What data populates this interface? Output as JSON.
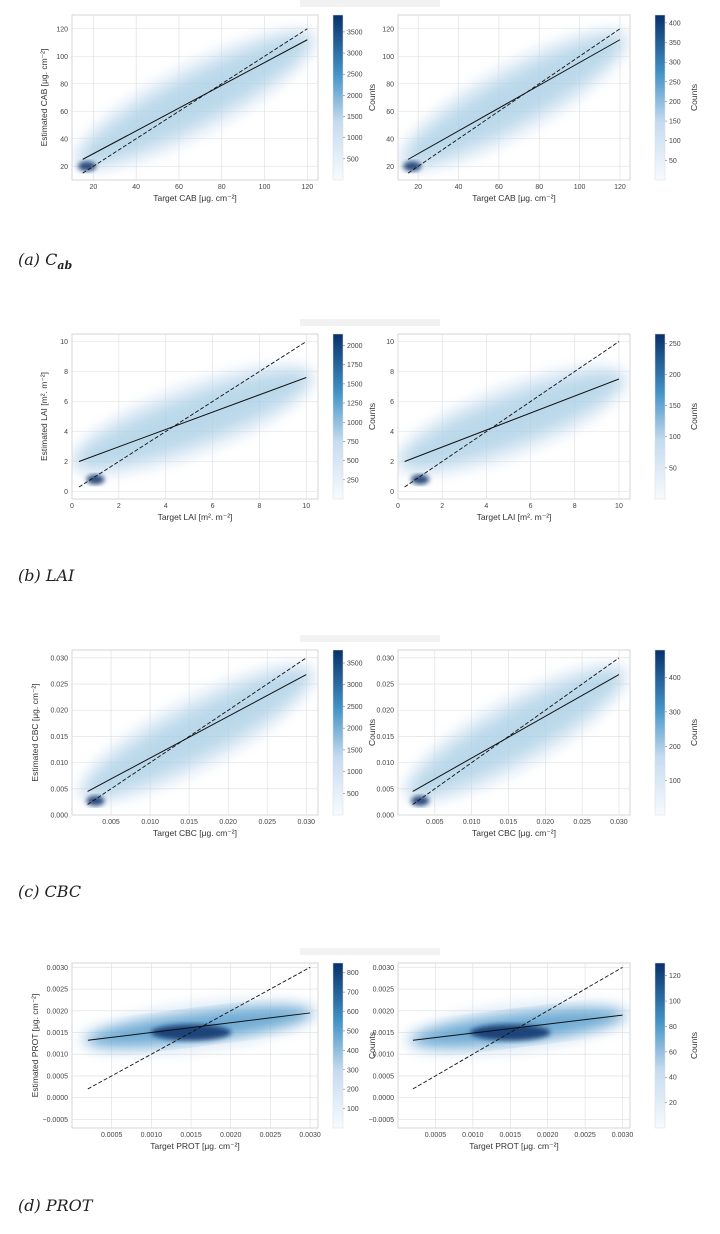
{
  "chart_data": [
    {
      "type": "heatmap",
      "variable": "CAB",
      "xlabel": "Target CAB [μg. cm⁻²]",
      "ylabel": "Estimated CAB [μg. cm⁻²]",
      "xlim": [
        10,
        125
      ],
      "ylim": [
        10,
        130
      ],
      "xticks": [
        20,
        40,
        60,
        80,
        100,
        120
      ],
      "yticks": [
        20,
        40,
        60,
        80,
        100,
        120
      ],
      "identity_line": [
        [
          15,
          15
        ],
        [
          120,
          120
        ]
      ],
      "panels": [
        {
          "regression": [
            [
              15,
              25
            ],
            [
              120,
              112
            ]
          ],
          "density_max_point": [
            17,
            20
          ],
          "colorbar": {
            "label": "Counts",
            "ticks": [
              500,
              1000,
              1500,
              2000,
              2500,
              3000,
              3500
            ],
            "range": [
              0,
              3900
            ]
          }
        },
        {
          "regression": [
            [
              15,
              25
            ],
            [
              120,
              112
            ]
          ],
          "density_max_point": [
            17,
            20
          ],
          "colorbar": {
            "label": "Counts",
            "ticks": [
              50,
              100,
              150,
              200,
              250,
              300,
              350,
              400
            ],
            "range": [
              0,
              420
            ]
          }
        }
      ]
    },
    {
      "type": "heatmap",
      "variable": "LAI",
      "xlabel": "Target LAI [m². m⁻²]",
      "ylabel": "Estimated LAI [m². m⁻²]",
      "xlim": [
        0,
        10.5
      ],
      "ylim": [
        -0.5,
        10.5
      ],
      "xticks": [
        0,
        2,
        4,
        6,
        8,
        10
      ],
      "yticks": [
        0,
        2,
        4,
        6,
        8,
        10
      ],
      "identity_line": [
        [
          0.3,
          0.3
        ],
        [
          10,
          10
        ]
      ],
      "panels": [
        {
          "regression": [
            [
              0.3,
              2.0
            ],
            [
              10,
              7.6
            ]
          ],
          "density_max_point": [
            1.0,
            0.8
          ],
          "colorbar": {
            "label": "Counts",
            "ticks": [
              250,
              500,
              750,
              1000,
              1250,
              1500,
              1750,
              2000
            ],
            "range": [
              0,
              2150
            ]
          }
        },
        {
          "regression": [
            [
              0.3,
              2.0
            ],
            [
              10,
              7.5
            ]
          ],
          "density_max_point": [
            1.0,
            0.8
          ],
          "colorbar": {
            "label": "Counts",
            "ticks": [
              50,
              100,
              150,
              200,
              250
            ],
            "range": [
              0,
              265
            ]
          }
        }
      ]
    },
    {
      "type": "heatmap",
      "variable": "CBC",
      "xlabel": "Target CBC [μg. cm⁻²]",
      "ylabel": "Estimated CBC [μg. cm⁻²]",
      "xlim": [
        0,
        0.0315
      ],
      "ylim": [
        0,
        0.0315
      ],
      "xticks": [
        0.005,
        0.01,
        0.015,
        0.02,
        0.025,
        0.03
      ],
      "xtick_labels": [
        "0.005",
        "0.010",
        "0.015",
        "0.020",
        "0.025",
        "0.030"
      ],
      "yticks": [
        0.0,
        0.005,
        0.01,
        0.015,
        0.02,
        0.025,
        0.03
      ],
      "ytick_labels": [
        "0.000",
        "0.005",
        "0.010",
        "0.015",
        "0.020",
        "0.025",
        "0.030"
      ],
      "identity_line": [
        [
          0.002,
          0.002
        ],
        [
          0.03,
          0.03
        ]
      ],
      "panels": [
        {
          "regression": [
            [
              0.002,
              0.0045
            ],
            [
              0.03,
              0.0268
            ]
          ],
          "density_max_point": [
            0.003,
            0.0027
          ],
          "colorbar": {
            "label": "Counts",
            "ticks": [
              500,
              1000,
              1500,
              2000,
              2500,
              3000,
              3500
            ],
            "range": [
              0,
              3800
            ]
          }
        },
        {
          "regression": [
            [
              0.002,
              0.0045
            ],
            [
              0.03,
              0.0268
            ]
          ],
          "density_max_point": [
            0.003,
            0.0027
          ],
          "colorbar": {
            "label": "Counts",
            "ticks": [
              100,
              200,
              300,
              400
            ],
            "range": [
              0,
              480
            ]
          }
        }
      ]
    },
    {
      "type": "heatmap",
      "variable": "PROT",
      "xlabel": "Target PROT [μg. cm⁻²]",
      "ylabel": "Estimated PROT [μg. cm⁻²]",
      "xlim": [
        0,
        0.0031
      ],
      "ylim": [
        -0.0007,
        0.0031
      ],
      "xticks": [
        0.0005,
        0.001,
        0.0015,
        0.002,
        0.0025,
        0.003
      ],
      "xtick_labels": [
        "0.0005",
        "0.0010",
        "0.0015",
        "0.0020",
        "0.0025",
        "0.0030"
      ],
      "yticks": [
        -0.0005,
        0.0,
        0.0005,
        0.001,
        0.0015,
        0.002,
        0.0025,
        0.003
      ],
      "ytick_labels": [
        "−0.0005",
        "0.0000",
        "0.0005",
        "0.0010",
        "0.0015",
        "0.0020",
        "0.0025",
        "0.0030"
      ],
      "identity_line": [
        [
          0.0002,
          0.0002
        ],
        [
          0.003,
          0.003
        ]
      ],
      "panels": [
        {
          "regression": [
            [
              0.0002,
              0.00132
            ],
            [
              0.003,
              0.00195
            ]
          ],
          "density_max_point": [
            0.0015,
            0.0015
          ],
          "colorbar": {
            "label": "Counts",
            "ticks": [
              100,
              200,
              300,
              400,
              500,
              600,
              700,
              800
            ],
            "range": [
              0,
              850
            ]
          }
        },
        {
          "regression": [
            [
              0.0002,
              0.00132
            ],
            [
              0.003,
              0.0019
            ]
          ],
          "density_max_point": [
            0.0015,
            0.0015
          ],
          "colorbar": {
            "label": "Counts",
            "ticks": [
              20,
              40,
              60,
              80,
              100,
              120
            ],
            "range": [
              0,
              130
            ]
          }
        }
      ]
    }
  ],
  "captions": [
    {
      "prefix": "(a) C",
      "sub": "ab"
    },
    {
      "prefix": "(b) LAI",
      "sub": ""
    },
    {
      "prefix": "(c) CBC",
      "sub": ""
    },
    {
      "prefix": "(d) PROT",
      "sub": ""
    }
  ],
  "colors": {
    "dark": "#08306b",
    "mid": "#4292c6",
    "light": "#deebf7",
    "grid": "#dddddd",
    "line": "#111111"
  }
}
